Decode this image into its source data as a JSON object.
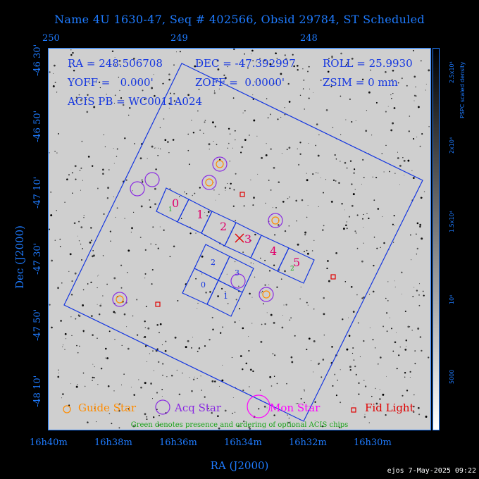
{
  "title": "Name 4U 1630-47, Seq # 402566, Obsid 29784, ST Scheduled",
  "top_axis": {
    "ticks": [
      "250",
      "249",
      "248"
    ]
  },
  "left_axis": {
    "label": "Dec (J2000)",
    "ticks": [
      "-46 30'",
      "-46 50'",
      "-47 10'",
      "-47 30'",
      "-47 50'",
      "-48 10'"
    ]
  },
  "bottom_axis": {
    "label": "RA (J2000)",
    "ticks": [
      "16h40m",
      "16h38m",
      "16h36m",
      "16h34m",
      "16h32m",
      "16h30m"
    ]
  },
  "colorbar": {
    "label": "PSPC scaled density",
    "ticks": [
      "2.5x10⁴",
      "2x10⁴",
      "1.5x10⁴",
      "10⁴",
      "5000"
    ]
  },
  "info": {
    "line1a": "RA = 248.506708",
    "line1b": "DEC = -47.392997",
    "line1c": "ROLL = 25.9930",
    "line2a": "YOFF =   0.000'",
    "line2b": "ZOFF =  0.0000'",
    "line2c": "ZSIM = 0 mm",
    "line3": "ACIS PB = WC0011A024"
  },
  "acis_labels": {
    "s": [
      "0",
      "1",
      "2",
      "3",
      "4",
      "5"
    ],
    "i": [
      "0",
      "1",
      "2",
      "3"
    ],
    "optional": [
      "1",
      "2"
    ]
  },
  "legend": {
    "guide": "Guide Star",
    "acq": "Acq Star",
    "mon": "Mon Star",
    "fid": "Fid Light",
    "note": "Green denotes presence and ordering of optional ACIS chips"
  },
  "credit": "ejos  7-May-2025 09:22",
  "colors": {
    "axis": "#1e7bff",
    "field_outline": "#1436e0",
    "guide": "#ff8c00",
    "acq": "#8a2be2",
    "mon": "#ff00ff",
    "fid": "#e00000",
    "chip_label": "#e0006a",
    "optional": "#1aa31a"
  }
}
